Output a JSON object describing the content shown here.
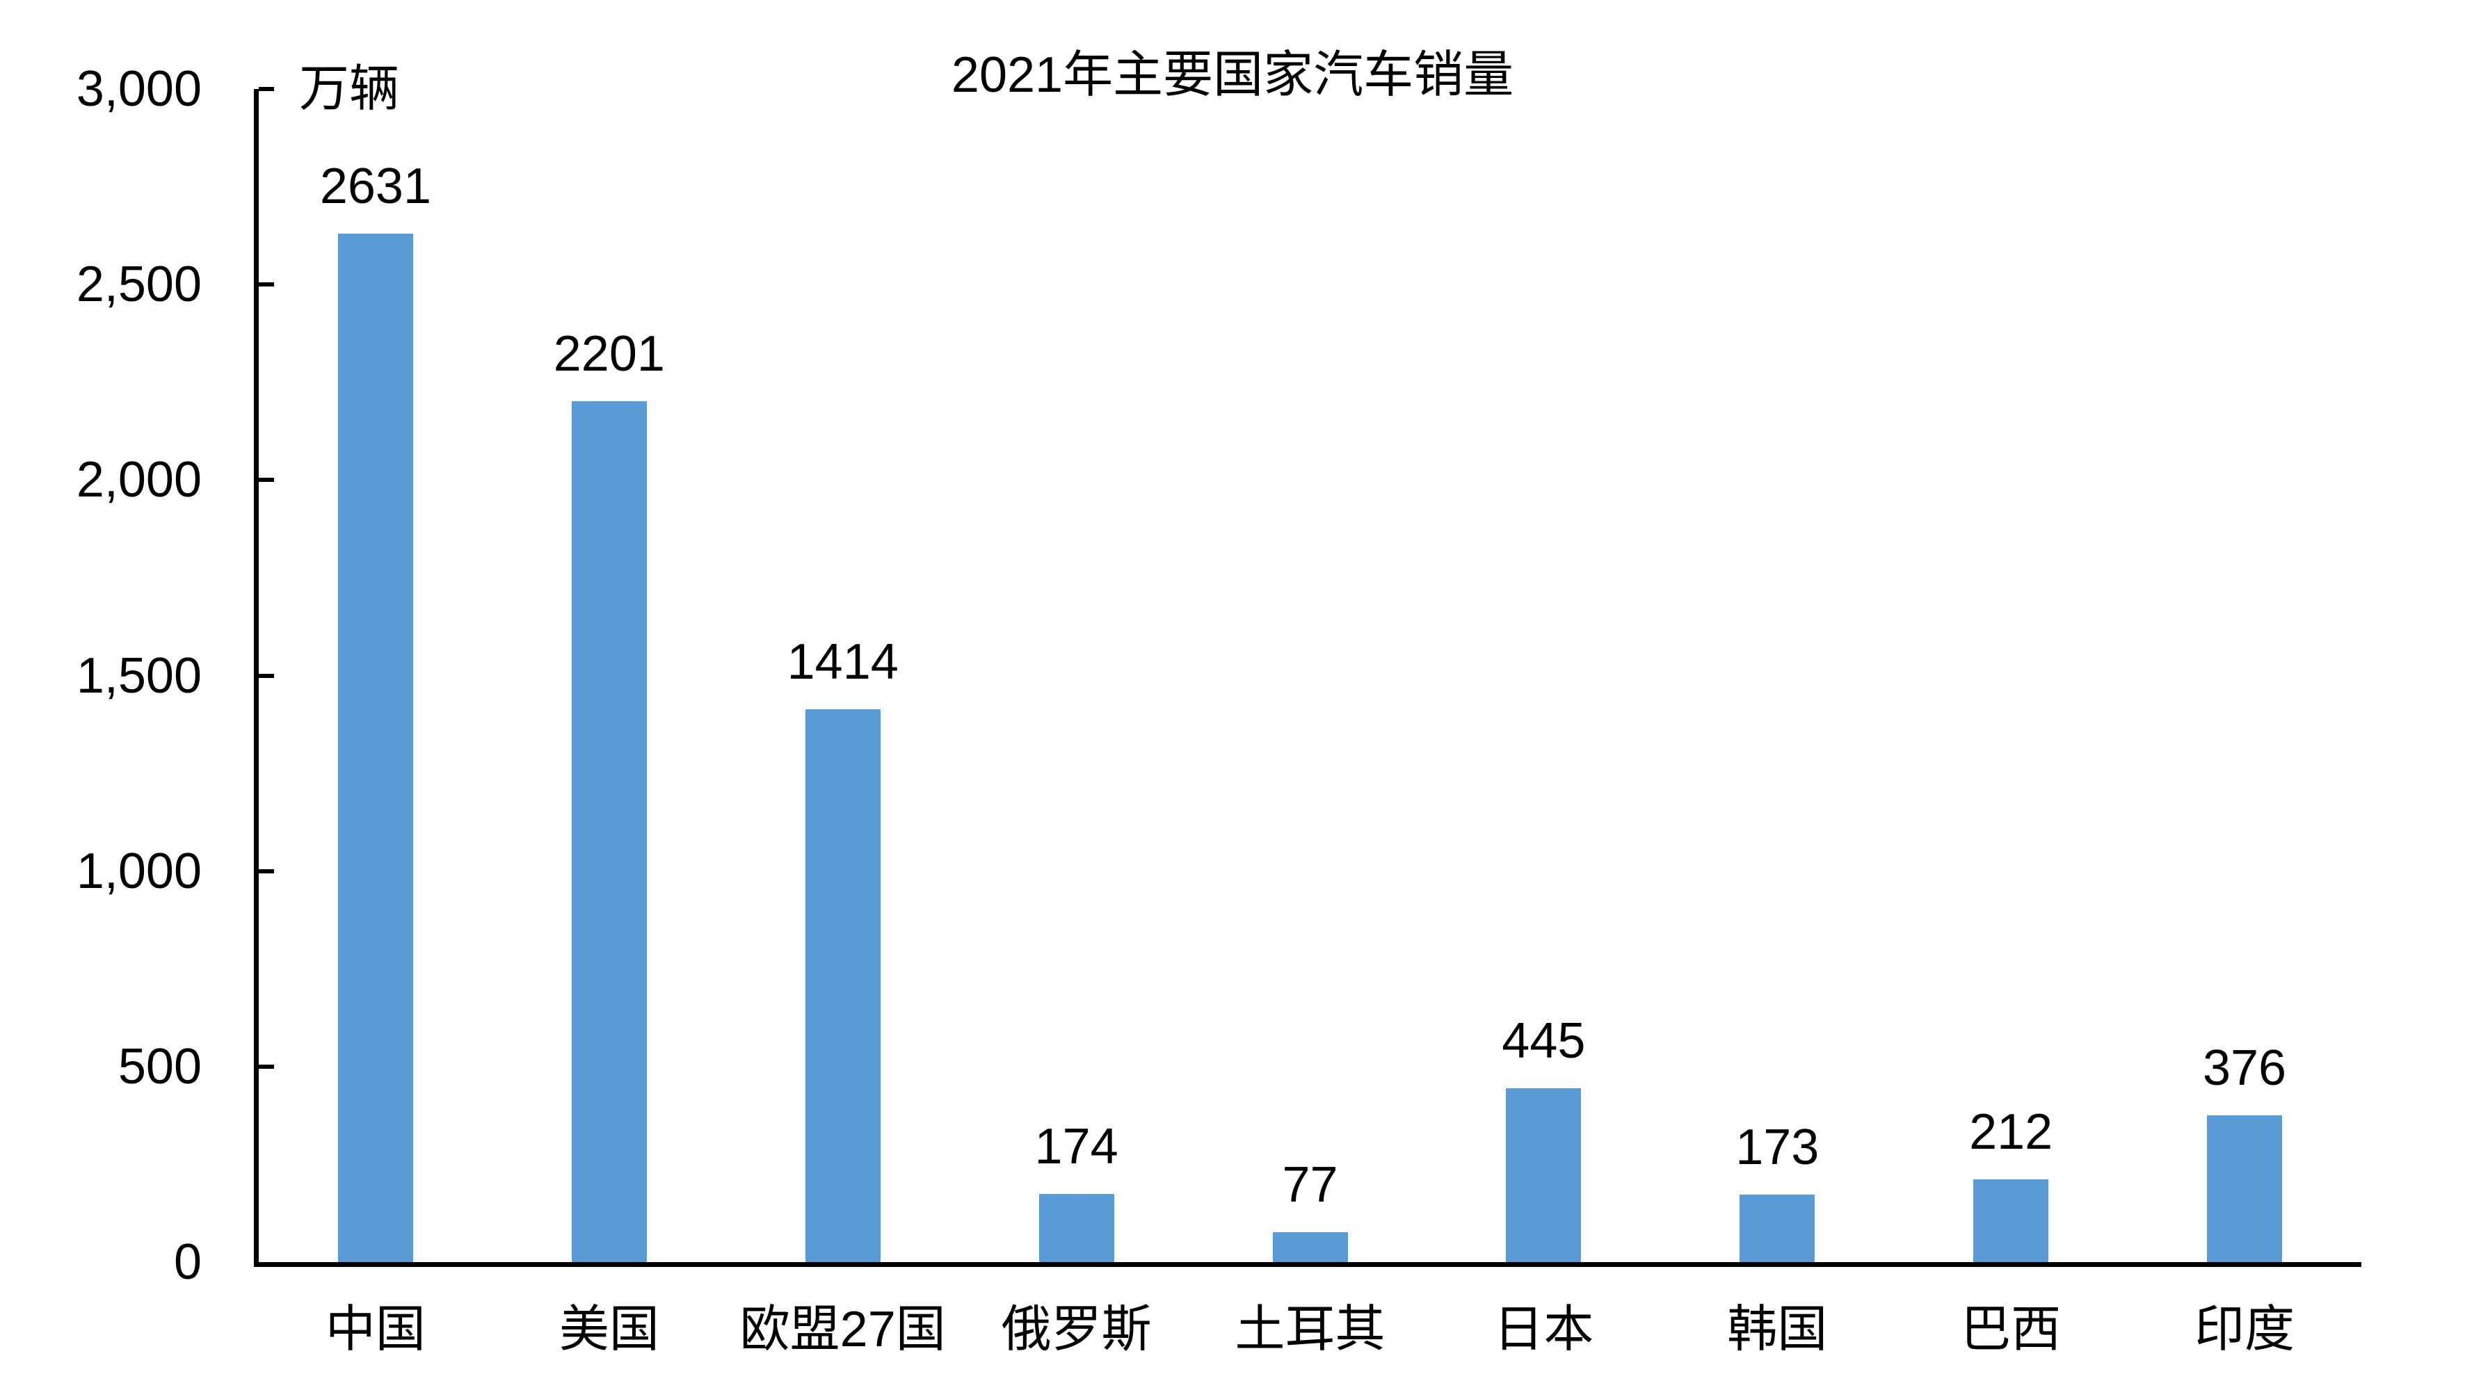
{
  "chart_data": {
    "type": "bar",
    "title": "2021年主要国家汽车销量",
    "unit_label": "万辆",
    "categories": [
      "中国",
      "美国",
      "欧盟27国",
      "俄罗斯",
      "土耳其",
      "日本",
      "韩国",
      "巴西",
      "印度"
    ],
    "values": [
      2631,
      2201,
      1414,
      174,
      77,
      445,
      173,
      212,
      376
    ],
    "value_labels": [
      "2631",
      "2201",
      "1414",
      "174",
      "77",
      "445",
      "173",
      "212",
      "376"
    ],
    "xlabel": "",
    "ylabel": "万辆",
    "ylim": [
      0,
      3000
    ],
    "y_tick_values": [
      0,
      500,
      1000,
      1500,
      2000,
      2500,
      3000
    ],
    "y_tick_labels": [
      "0",
      "500",
      "1,000",
      "1,500",
      "2,000",
      "2,500",
      "3,000"
    ],
    "grid": false,
    "legend_position": "none",
    "bar_color": "#5B9BD5",
    "axis_color": "#000000",
    "text_color": "#000000",
    "background_color": "#FFFFFF"
  }
}
